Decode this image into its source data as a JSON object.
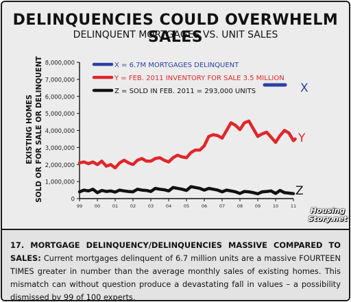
{
  "headline": "DELINQUENCIES COULD OVERWHELM SALES",
  "subhead": "DELINQUENT MORTGAGES VS. UNIT SALES",
  "watermark": {
    "line1": "Housing",
    "line2": "Story.net"
  },
  "footnote": {
    "lead": "17. MORTGAGE DELINQUENCY/DELINQUENCIES MASSIVE COMPARED TO SALES:",
    "body": "Current mortgages delinquent of 6.7 million units are a massive FOURTEEN TIMES greater in number than the average monthly sales of existing homes. This mismatch can without question produce a devastating fall in values – a possibility dismissed by 99 of 100 experts."
  },
  "colors": {
    "x": "#2e3fa6",
    "y": "#e0262a",
    "z": "#111111"
  },
  "chart_data": {
    "type": "line",
    "ylabel_line1": "EXISTING HOMES",
    "ylabel_line2": "SOLD OR FOR SALE OR DELINQUENT",
    "ylim": [
      0,
      8000000
    ],
    "yticks": [
      "0",
      "1,000,000",
      "2,000,000",
      "3,000,000",
      "4,000,000",
      "5,000,000",
      "6,000,000",
      "7,000,000",
      "8,000,000"
    ],
    "xlim": [
      1999,
      2011
    ],
    "xticks": [
      "99",
      "00",
      "01",
      "02",
      "03",
      "04",
      "05",
      "06",
      "07",
      "08",
      "09",
      "10",
      "11"
    ],
    "legend": [
      {
        "key": "x",
        "text": "X = 6.7M MORTGAGES DELINQUENT"
      },
      {
        "key": "y",
        "text": "Y = FEB. 2011 INVENTORY FOR SALE 3.5 MILLION"
      },
      {
        "key": "z",
        "text": "Z = SOLD IN FEB. 2011 = 293,000 UNITS"
      }
    ],
    "series": [
      {
        "key": "x",
        "end_label": "X",
        "points": [
          [
            2011.0,
            6700000
          ]
        ]
      },
      {
        "key": "y",
        "end_label": "Y",
        "points": [
          [
            1999.0,
            2100000
          ],
          [
            1999.25,
            2150000
          ],
          [
            1999.5,
            2050000
          ],
          [
            1999.75,
            2150000
          ],
          [
            2000.0,
            2000000
          ],
          [
            2000.25,
            2200000
          ],
          [
            2000.5,
            1900000
          ],
          [
            2000.75,
            2000000
          ],
          [
            2001.0,
            1800000
          ],
          [
            2001.25,
            2100000
          ],
          [
            2001.5,
            2250000
          ],
          [
            2001.75,
            2100000
          ],
          [
            2002.0,
            2000000
          ],
          [
            2002.25,
            2250000
          ],
          [
            2002.5,
            2350000
          ],
          [
            2002.75,
            2200000
          ],
          [
            2003.0,
            2200000
          ],
          [
            2003.25,
            2350000
          ],
          [
            2003.5,
            2400000
          ],
          [
            2003.75,
            2250000
          ],
          [
            2004.0,
            2150000
          ],
          [
            2004.25,
            2400000
          ],
          [
            2004.5,
            2550000
          ],
          [
            2004.75,
            2450000
          ],
          [
            2005.0,
            2400000
          ],
          [
            2005.25,
            2700000
          ],
          [
            2005.5,
            2850000
          ],
          [
            2005.75,
            2850000
          ],
          [
            2006.0,
            3100000
          ],
          [
            2006.25,
            3650000
          ],
          [
            2006.5,
            3750000
          ],
          [
            2006.75,
            3700000
          ],
          [
            2007.0,
            3550000
          ],
          [
            2007.25,
            4000000
          ],
          [
            2007.5,
            4450000
          ],
          [
            2007.75,
            4300000
          ],
          [
            2008.0,
            4050000
          ],
          [
            2008.25,
            4450000
          ],
          [
            2008.5,
            4550000
          ],
          [
            2008.75,
            4100000
          ],
          [
            2009.0,
            3650000
          ],
          [
            2009.25,
            3800000
          ],
          [
            2009.5,
            3900000
          ],
          [
            2009.75,
            3600000
          ],
          [
            2010.0,
            3300000
          ],
          [
            2010.25,
            3700000
          ],
          [
            2010.5,
            4000000
          ],
          [
            2010.75,
            3850000
          ],
          [
            2011.0,
            3400000
          ],
          [
            2011.1,
            3500000
          ]
        ]
      },
      {
        "key": "z",
        "end_label": "Z",
        "points": [
          [
            1999.0,
            400000
          ],
          [
            1999.25,
            500000
          ],
          [
            1999.5,
            450000
          ],
          [
            1999.75,
            550000
          ],
          [
            2000.0,
            350000
          ],
          [
            2000.25,
            480000
          ],
          [
            2000.5,
            420000
          ],
          [
            2000.75,
            450000
          ],
          [
            2001.0,
            380000
          ],
          [
            2001.25,
            500000
          ],
          [
            2001.5,
            450000
          ],
          [
            2001.75,
            420000
          ],
          [
            2002.0,
            400000
          ],
          [
            2002.25,
            550000
          ],
          [
            2002.5,
            500000
          ],
          [
            2002.75,
            480000
          ],
          [
            2003.0,
            420000
          ],
          [
            2003.25,
            600000
          ],
          [
            2003.5,
            550000
          ],
          [
            2003.75,
            520000
          ],
          [
            2004.0,
            450000
          ],
          [
            2004.25,
            650000
          ],
          [
            2004.5,
            600000
          ],
          [
            2004.75,
            550000
          ],
          [
            2005.0,
            480000
          ],
          [
            2005.25,
            700000
          ],
          [
            2005.5,
            650000
          ],
          [
            2005.75,
            600000
          ],
          [
            2006.0,
            500000
          ],
          [
            2006.25,
            600000
          ],
          [
            2006.5,
            550000
          ],
          [
            2006.75,
            500000
          ],
          [
            2007.0,
            400000
          ],
          [
            2007.25,
            500000
          ],
          [
            2007.5,
            450000
          ],
          [
            2007.75,
            400000
          ],
          [
            2008.0,
            300000
          ],
          [
            2008.25,
            420000
          ],
          [
            2008.5,
            400000
          ],
          [
            2008.75,
            350000
          ],
          [
            2009.0,
            280000
          ],
          [
            2009.25,
            400000
          ],
          [
            2009.5,
            420000
          ],
          [
            2009.75,
            450000
          ],
          [
            2010.0,
            300000
          ],
          [
            2010.25,
            480000
          ],
          [
            2010.5,
            350000
          ],
          [
            2010.75,
            320000
          ],
          [
            2011.0,
            293000
          ]
        ]
      }
    ]
  }
}
